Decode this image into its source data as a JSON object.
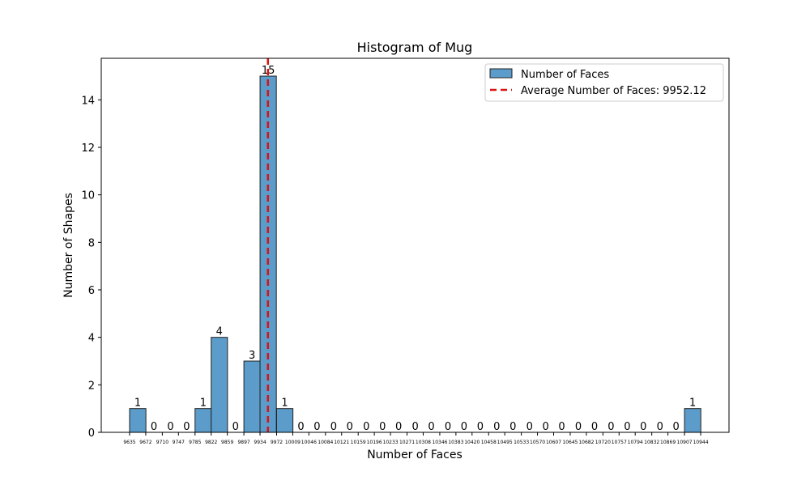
{
  "chart_data": {
    "type": "bar",
    "title": "Histogram of Mug",
    "xlabel": "Number of Faces",
    "ylabel": "Number of Shapes",
    "ylim": [
      0,
      15.75
    ],
    "y_ticks": [
      0,
      2,
      4,
      6,
      8,
      10,
      12,
      14
    ],
    "grid": false,
    "legend_position": "upper right",
    "bin_edges": [
      "9635",
      "9672",
      "9710",
      "9747",
      "9785",
      "9822",
      "9859",
      "9897",
      "9934",
      "9972",
      "10009",
      "10046",
      "10084",
      "10121",
      "10159",
      "10196",
      "10233",
      "10271",
      "10308",
      "10346",
      "10383",
      "10420",
      "10458",
      "10495",
      "10533",
      "10570",
      "10607",
      "10645",
      "10682",
      "10720",
      "10757",
      "10794",
      "10832",
      "10869",
      "10907",
      "10944"
    ],
    "series": [
      {
        "name": "Number of Faces",
        "color": "#5b9ccb",
        "edge_color": "#222222",
        "values": [
          1,
          0,
          0,
          0,
          1,
          4,
          0,
          3,
          15,
          1,
          0,
          0,
          0,
          0,
          0,
          0,
          0,
          0,
          0,
          0,
          0,
          0,
          0,
          0,
          0,
          0,
          0,
          0,
          0,
          0,
          0,
          0,
          0,
          0,
          1
        ]
      }
    ],
    "bar_labels": [
      "1",
      "0",
      "0",
      "0",
      "1",
      "4",
      "0",
      "3",
      "15",
      "1",
      "0",
      "0",
      "0",
      "0",
      "0",
      "0",
      "0",
      "0",
      "0",
      "0",
      "0",
      "0",
      "0",
      "0",
      "0",
      "0",
      "0",
      "0",
      "0",
      "0",
      "0",
      "0",
      "0",
      "0",
      "1"
    ],
    "average_line": {
      "label": "Average Number of Faces: 9952.12",
      "value": 9952.12,
      "color": "#dd1111"
    }
  }
}
